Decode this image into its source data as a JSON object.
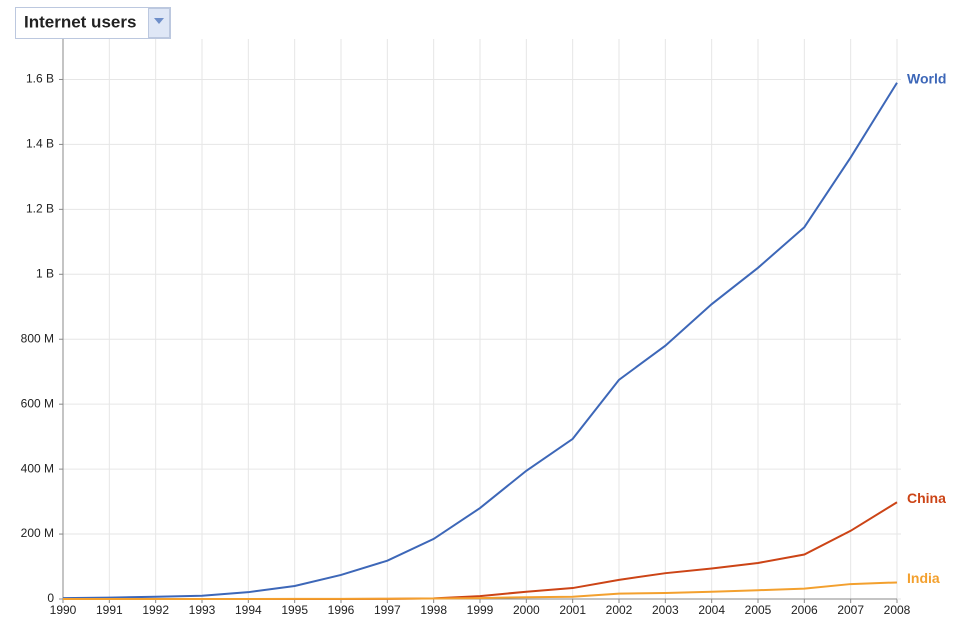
{
  "chart_data": {
    "type": "line",
    "title": "Internet users",
    "x": [
      1990,
      1991,
      1992,
      1993,
      1994,
      1995,
      1996,
      1997,
      1998,
      1999,
      2000,
      2001,
      2002,
      2003,
      2004,
      2005,
      2006,
      2007,
      2008
    ],
    "xlim": [
      1990,
      2008
    ],
    "xticks": [
      1990,
      1991,
      1992,
      1993,
      1994,
      1995,
      1996,
      1997,
      1998,
      1999,
      2000,
      2001,
      2002,
      2003,
      2004,
      2005,
      2006,
      2007,
      2008
    ],
    "ylim": [
      0,
      1700000000
    ],
    "yticks": [
      0,
      {
        "value": 200000000,
        "label": "200 M"
      },
      {
        "value": 400000000,
        "label": "400 M"
      },
      {
        "value": 600000000,
        "label": "600 M"
      },
      {
        "value": 800000000,
        "label": "800 M"
      },
      {
        "value": 1000000000,
        "label": "1 B"
      },
      {
        "value": 1200000000,
        "label": "1.2 B"
      },
      {
        "value": 1400000000,
        "label": "1.4 B"
      },
      {
        "value": 1600000000,
        "label": "1.6 B"
      }
    ],
    "grid": true,
    "series": [
      {
        "name": "World",
        "color": "#3d67b8",
        "values": [
          2600000,
          4400000,
          7000000,
          10000000,
          21000000,
          40000000,
          74000000,
          118000000,
          185000000,
          280000000,
          395000000,
          493000000,
          675000000,
          780000000,
          908000000,
          1020000000,
          1145000000,
          1360000000,
          1590000000
        ]
      },
      {
        "name": "China",
        "color": "#cc4416",
        "values": [
          0,
          0,
          0,
          0,
          14000,
          60000,
          160000,
          400000,
          2100000,
          8900000,
          22500000,
          33700000,
          59000000,
          79500000,
          94000000,
          111000000,
          137000000,
          210000000,
          298000000
        ]
      },
      {
        "name": "India",
        "color": "#f3a02e",
        "values": [
          0,
          0,
          0,
          0,
          10000,
          250000,
          450000,
          700000,
          1400000,
          2800000,
          5500000,
          7000000,
          16500000,
          18500000,
          22500000,
          27000000,
          32000000,
          46000000,
          51000000
        ]
      }
    ]
  }
}
